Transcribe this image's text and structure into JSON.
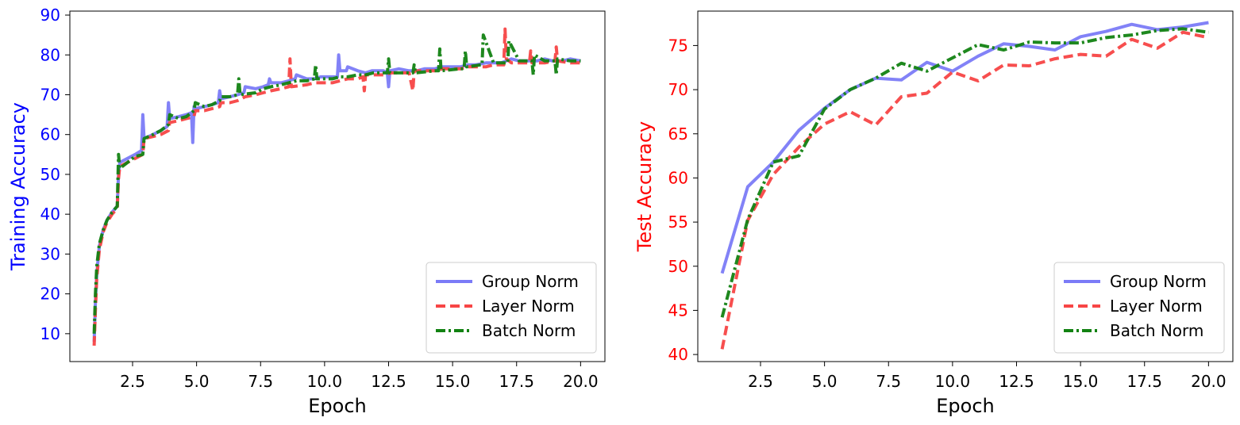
{
  "chart_data": [
    {
      "type": "line",
      "title": "",
      "xlabel": "Epoch",
      "ylabel": "Training Accuracy",
      "ylabel_color": "#0000ff",
      "ytick_color": "#0000ff",
      "xlim": [
        0.05,
        20.95
      ],
      "ylim": [
        3,
        91
      ],
      "xticks": [
        2.5,
        5.0,
        7.5,
        10.0,
        12.5,
        15.0,
        17.5,
        20.0
      ],
      "xtick_labels": [
        "2.5",
        "5.0",
        "7.5",
        "10.0",
        "12.5",
        "15.0",
        "17.5",
        "20.0"
      ],
      "yticks": [
        10,
        20,
        30,
        40,
        50,
        60,
        70,
        80,
        90
      ],
      "ytick_labels": [
        "10",
        "20",
        "30",
        "40",
        "50",
        "60",
        "70",
        "80",
        "90"
      ],
      "grid": false,
      "legend_position": "lower-right",
      "series": [
        {
          "name": "Group Norm",
          "color": "#7b7bf7",
          "style": "solid",
          "x": [
            1.0,
            1.05,
            1.1,
            1.2,
            1.35,
            1.5,
            1.7,
            1.9,
            1.95,
            2.0,
            2.3,
            2.6,
            2.85,
            2.9,
            2.95,
            3.3,
            3.6,
            3.85,
            3.9,
            3.95,
            4.3,
            4.6,
            4.8,
            4.85,
            4.9,
            4.95,
            5.3,
            5.6,
            5.85,
            5.9,
            5.95,
            6.3,
            6.6,
            6.85,
            6.9,
            7.3,
            7.6,
            7.8,
            7.85,
            7.9,
            8.3,
            8.6,
            8.85,
            8.9,
            9.3,
            9.6,
            9.85,
            9.9,
            10.3,
            10.5,
            10.55,
            10.6,
            10.85,
            10.9,
            11.3,
            11.6,
            11.85,
            11.9,
            12.3,
            12.45,
            12.5,
            12.55,
            12.9,
            13.3,
            13.6,
            13.9,
            14.3,
            14.6,
            14.9,
            15.3,
            15.6,
            15.9,
            16.3,
            16.6,
            16.9,
            17.3,
            17.6,
            17.9,
            18.3,
            18.6,
            18.9,
            19.3,
            19.6,
            20.0
          ],
          "y": [
            8,
            18,
            25,
            32,
            36,
            38.5,
            40.5,
            42,
            50,
            53,
            54,
            55,
            56,
            65,
            59,
            60,
            61,
            62,
            68,
            64,
            64.5,
            65,
            65.5,
            58,
            67,
            66.5,
            67,
            67.5,
            68,
            71,
            69,
            69.5,
            70,
            70.5,
            72,
            71.5,
            72,
            72.5,
            74,
            73,
            73,
            73.5,
            74,
            75,
            74,
            74,
            74.5,
            74.5,
            74.5,
            74.5,
            80,
            76,
            76,
            77,
            76,
            75.5,
            76,
            76,
            76,
            75.5,
            72,
            76,
            76.5,
            76,
            76,
            76.5,
            76.5,
            77,
            77,
            77,
            77.5,
            77.5,
            78,
            78,
            78,
            79,
            78.5,
            78.5,
            78.5,
            79,
            78.5,
            78.5,
            79,
            78.5
          ]
        },
        {
          "name": "Layer Norm",
          "color": "#f74545",
          "style": "dashed",
          "x": [
            1.0,
            1.05,
            1.1,
            1.2,
            1.35,
            1.5,
            1.7,
            1.9,
            1.95,
            2.0,
            2.3,
            2.6,
            2.9,
            2.95,
            3.3,
            3.6,
            3.9,
            3.95,
            4.3,
            4.6,
            4.9,
            4.95,
            5.3,
            5.6,
            5.9,
            5.95,
            6.3,
            6.6,
            6.9,
            7.3,
            7.6,
            7.9,
            8.3,
            8.6,
            8.65,
            8.7,
            9.3,
            9.6,
            9.9,
            10.3,
            10.6,
            10.9,
            11.3,
            11.5,
            11.55,
            11.6,
            12.3,
            12.6,
            13.3,
            13.45,
            13.5,
            13.6,
            14.3,
            14.6,
            15.3,
            15.6,
            16.3,
            16.6,
            17.0,
            17.05,
            17.1,
            17.3,
            17.6,
            18.0,
            18.05,
            18.1,
            18.6,
            19.0,
            19.05,
            19.1,
            19.6,
            20.0
          ],
          "y": [
            7,
            16,
            24,
            31,
            35.5,
            38,
            40,
            41.5,
            49,
            52,
            53,
            54,
            55,
            59,
            59.5,
            60,
            61,
            63,
            63.5,
            64,
            64.5,
            66,
            66,
            66.5,
            67,
            68,
            68,
            68.5,
            69.5,
            70,
            70.5,
            71,
            71.5,
            72,
            79,
            72,
            72.5,
            73,
            73,
            73,
            73.5,
            74,
            74,
            74.5,
            71,
            75,
            75,
            75.5,
            75.5,
            71,
            76,
            76,
            76,
            76.5,
            76.5,
            77,
            77,
            77.5,
            77.5,
            86.5,
            79,
            78,
            78,
            78,
            81,
            78,
            78,
            78.5,
            82,
            78.5,
            78,
            78
          ]
        },
        {
          "name": "Batch Norm",
          "color": "#128212",
          "style": "dashdot",
          "x": [
            1.0,
            1.05,
            1.1,
            1.2,
            1.35,
            1.5,
            1.7,
            1.9,
            1.95,
            2.0,
            2.3,
            2.6,
            2.9,
            2.95,
            3.3,
            3.6,
            3.9,
            3.95,
            4.3,
            4.6,
            4.9,
            4.95,
            5.3,
            5.6,
            5.9,
            5.95,
            6.3,
            6.6,
            6.65,
            6.7,
            7.3,
            7.6,
            7.9,
            8.3,
            8.6,
            8.9,
            9.3,
            9.6,
            9.65,
            9.7,
            10.3,
            10.6,
            10.9,
            11.3,
            11.6,
            11.9,
            12.3,
            12.45,
            12.5,
            12.55,
            13.3,
            13.45,
            13.5,
            13.55,
            14.3,
            14.45,
            14.5,
            14.55,
            15.3,
            15.45,
            15.5,
            15.55,
            16.1,
            16.15,
            16.2,
            16.6,
            17.1,
            17.15,
            17.2,
            17.6,
            18.1,
            18.15,
            18.2,
            18.6,
            19.0,
            19.05,
            19.1,
            19.6,
            20.0
          ],
          "y": [
            10,
            20,
            27,
            32.5,
            36,
            38.5,
            40.5,
            42,
            55,
            51.5,
            53,
            54.5,
            55,
            59,
            60,
            61,
            62.5,
            65,
            64,
            64.5,
            66,
            68,
            67,
            67.5,
            68.5,
            69.5,
            69.5,
            70,
            74,
            70,
            70.5,
            71.5,
            72,
            72.5,
            73,
            73.5,
            73.5,
            74,
            77.5,
            74,
            74,
            74.5,
            74.5,
            75,
            75,
            75.5,
            75.5,
            75.5,
            79,
            75.5,
            75.5,
            75.5,
            77.5,
            75.5,
            76,
            76,
            81.5,
            76,
            76.5,
            76.5,
            81,
            77,
            77.5,
            77.5,
            85,
            78,
            78,
            78,
            83.5,
            78.5,
            78.5,
            75,
            80,
            78.5,
            78.5,
            75,
            79,
            78.5,
            78.5
          ]
        }
      ]
    },
    {
      "type": "line",
      "title": "",
      "xlabel": "Epoch",
      "ylabel": "Test Accuracy",
      "ylabel_color": "#ff0000",
      "ytick_color": "#ff0000",
      "xlim": [
        0.05,
        20.95
      ],
      "ylim": [
        39.2,
        78.9
      ],
      "xticks": [
        2.5,
        5.0,
        7.5,
        10.0,
        12.5,
        15.0,
        17.5,
        20.0
      ],
      "xtick_labels": [
        "2.5",
        "5.0",
        "7.5",
        "10.0",
        "12.5",
        "15.0",
        "17.5",
        "20.0"
      ],
      "yticks": [
        40,
        45,
        50,
        55,
        60,
        65,
        70,
        75
      ],
      "ytick_labels": [
        "40",
        "45",
        "50",
        "55",
        "60",
        "65",
        "70",
        "75"
      ],
      "grid": false,
      "legend_position": "lower-right",
      "series": [
        {
          "name": "Group Norm",
          "color": "#7b7bf7",
          "style": "solid",
          "x": [
            1,
            2,
            3,
            4,
            5,
            6,
            7,
            8,
            9,
            10,
            11,
            12,
            13,
            14,
            15,
            16,
            17,
            18,
            19,
            20
          ],
          "y": [
            49.2,
            59.0,
            61.8,
            65.4,
            67.9,
            70.0,
            71.3,
            71.1,
            73.1,
            72.1,
            73.8,
            75.2,
            74.9,
            74.5,
            76.0,
            76.6,
            77.4,
            76.8,
            77.1,
            77.6
          ]
        },
        {
          "name": "Layer Norm",
          "color": "#f74545",
          "style": "dashed",
          "x": [
            1,
            2,
            3,
            4,
            5,
            6,
            7,
            8,
            9,
            10,
            11,
            12,
            13,
            14,
            15,
            16,
            17,
            18,
            19,
            20
          ],
          "y": [
            40.6,
            55.2,
            60.4,
            63.5,
            66.1,
            67.5,
            66.0,
            69.2,
            69.6,
            72.0,
            71.0,
            72.8,
            72.7,
            73.5,
            74.0,
            73.8,
            75.7,
            74.7,
            76.5,
            75.9
          ]
        },
        {
          "name": "Batch Norm",
          "color": "#128212",
          "style": "dashdot",
          "x": [
            1,
            2,
            3,
            4,
            5,
            6,
            7,
            8,
            9,
            10,
            11,
            12,
            13,
            14,
            15,
            16,
            17,
            18,
            19,
            20
          ],
          "y": [
            44.2,
            55.3,
            61.8,
            62.5,
            67.8,
            70.0,
            71.3,
            73.0,
            72.1,
            73.6,
            75.1,
            74.5,
            75.4,
            75.3,
            75.3,
            75.9,
            76.2,
            76.7,
            76.9,
            76.5
          ]
        }
      ]
    }
  ]
}
